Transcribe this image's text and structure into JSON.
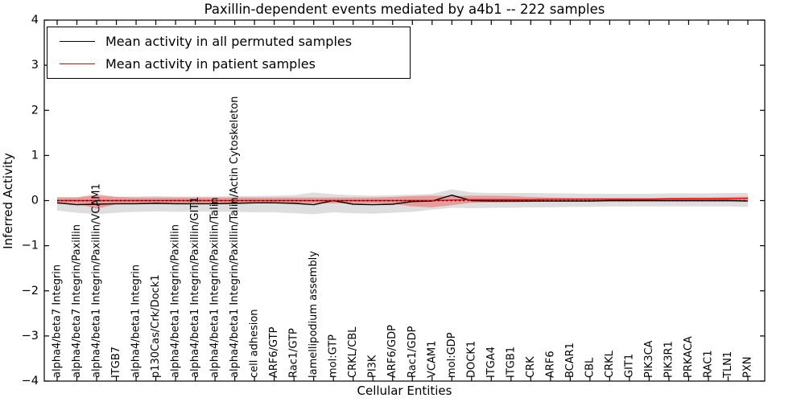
{
  "figure": {
    "title": "Paxillin-dependent events mediated by a4b1 -- 222 samples"
  },
  "legend": {
    "items": [
      {
        "label": "Mean activity in all permuted samples",
        "color": "#000000"
      },
      {
        "label": "Mean activity in patient samples",
        "color": "#ff0000"
      }
    ]
  },
  "chart_data": {
    "type": "line",
    "title": "Paxillin-dependent events mediated by a4b1 -- 222 samples",
    "xlabel": "Cellular Entities",
    "ylabel": "Inferred Activity",
    "ylim": [
      -4,
      4
    ],
    "yticks": [
      4,
      3,
      2,
      1,
      0,
      -1,
      -2,
      -3,
      -4
    ],
    "ytick_labels": [
      "4",
      "3",
      "2",
      "1",
      "0",
      "−1",
      "−2",
      "−3",
      "−4"
    ],
    "grid": false,
    "legend_position": "upper left",
    "zero_line": {
      "value": 0,
      "style": "dotted",
      "color": "#000000"
    },
    "categories": [
      "alpha4/beta7 Integrin",
      "alpha4/beta7 Integrin/Paxillin",
      "alpha4/beta1 Integrin/Paxillin/VCAM1",
      "ITGB7",
      "alpha4/beta1 Integrin",
      "p130Cas/Crk/Dock1",
      "alpha4/beta1 Integrin/Paxillin",
      "alpha4/beta1 Integrin/Paxillin/GIT1",
      "alpha4/beta1 Integrin/Paxillin/Talin",
      "alpha4/beta1 Integrin/Paxillin/Talin/Actin Cytoskeleton",
      "cell adhesion",
      "ARF6/GTP",
      "Rac1/GTP",
      "lamellipodium assembly",
      "mol:GTP",
      "CRKL/CBL",
      "PI3K",
      "ARF6/GDP",
      "Rac1/GDP",
      "VCAM1",
      "mol:GDP",
      "DOCK1",
      "ITGA4",
      "ITGB1",
      "CRK",
      "ARF6",
      "BCAR1",
      "CBL",
      "CRKL",
      "GIT1",
      "PIK3CA",
      "PIK3R1",
      "PRKACA",
      "RAC1",
      "TLN1",
      "PXN"
    ],
    "series": [
      {
        "name": "Mean activity in all permuted samples",
        "color": "#000000",
        "line_width": 1.4,
        "values": [
          -0.05,
          -0.09,
          -0.08,
          -0.07,
          -0.07,
          -0.06,
          -0.07,
          -0.07,
          -0.07,
          -0.06,
          -0.05,
          -0.05,
          -0.06,
          -0.09,
          0.0,
          -0.08,
          -0.09,
          -0.08,
          -0.02,
          -0.01,
          0.12,
          0.0,
          -0.01,
          -0.01,
          -0.01,
          -0.01,
          -0.01,
          -0.01,
          0.0,
          0.0,
          0.0,
          0.0,
          0.0,
          0.0,
          0.0,
          -0.01
        ],
        "band_lo": [
          -0.22,
          -0.27,
          -0.3,
          -0.27,
          -0.25,
          -0.24,
          -0.25,
          -0.24,
          -0.25,
          -0.25,
          -0.26,
          -0.26,
          -0.28,
          -0.3,
          -0.26,
          -0.28,
          -0.29,
          -0.27,
          -0.25,
          -0.2,
          -0.16,
          -0.17,
          -0.16,
          -0.16,
          -0.15,
          -0.15,
          -0.14,
          -0.14,
          -0.13,
          -0.13,
          -0.13,
          -0.13,
          -0.13,
          -0.13,
          -0.13,
          -0.14
        ],
        "band_hi": [
          0.08,
          0.08,
          0.1,
          0.09,
          0.09,
          0.1,
          0.09,
          0.09,
          0.09,
          0.1,
          0.1,
          0.11,
          0.12,
          0.18,
          0.14,
          0.12,
          0.11,
          0.12,
          0.13,
          0.15,
          0.25,
          0.18,
          0.17,
          0.17,
          0.17,
          0.16,
          0.16,
          0.15,
          0.15,
          0.15,
          0.15,
          0.16,
          0.16,
          0.16,
          0.17,
          0.17
        ],
        "band_color": "rgba(0,0,0,0.13)"
      },
      {
        "name": "Mean activity in patient samples",
        "color": "#ff0000",
        "line_width": 1.4,
        "values": [
          0.0,
          0.0,
          0.0,
          0.0,
          0.0,
          0.0,
          0.0,
          0.0,
          0.0,
          0.0,
          0.0,
          0.0,
          0.0,
          0.0,
          0.0,
          0.0,
          0.0,
          0.0,
          0.0,
          0.0,
          0.01,
          0.02,
          0.02,
          0.02,
          0.02,
          0.03,
          0.03,
          0.03,
          0.03,
          0.03,
          0.03,
          0.04,
          0.04,
          0.04,
          0.04,
          0.05
        ],
        "band_lo": [
          -0.07,
          -0.07,
          -0.18,
          -0.08,
          -0.07,
          -0.06,
          -0.06,
          -0.06,
          -0.06,
          -0.06,
          -0.06,
          -0.06,
          -0.06,
          -0.06,
          -0.06,
          -0.06,
          -0.06,
          -0.07,
          -0.13,
          -0.15,
          -0.1,
          -0.05,
          -0.04,
          -0.04,
          -0.03,
          -0.02,
          -0.02,
          -0.02,
          -0.02,
          -0.02,
          -0.02,
          -0.02,
          -0.02,
          -0.02,
          -0.02,
          -0.01
        ],
        "band_hi": [
          0.07,
          0.07,
          0.14,
          0.08,
          0.07,
          0.07,
          0.07,
          0.07,
          0.07,
          0.07,
          0.07,
          0.07,
          0.07,
          0.07,
          0.07,
          0.07,
          0.07,
          0.08,
          0.1,
          0.11,
          0.1,
          0.11,
          0.11,
          0.1,
          0.08,
          0.07,
          0.06,
          0.06,
          0.06,
          0.06,
          0.06,
          0.06,
          0.07,
          0.07,
          0.08,
          0.09
        ],
        "band_color": "rgba(255,0,0,0.30)"
      }
    ]
  }
}
